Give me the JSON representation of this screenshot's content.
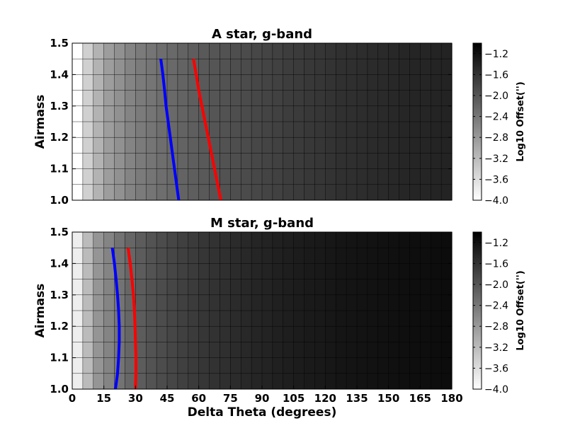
{
  "chart_data": [
    {
      "type": "heatmap",
      "title": "A star, g-band",
      "xlabel": "",
      "ylabel": "Airmass",
      "xlim": [
        0,
        180
      ],
      "ylim": [
        1.0,
        1.5
      ],
      "x_grid_step": 5,
      "y_grid_step": 0.05,
      "x_ticks": [],
      "y_ticks": [
        "1.0",
        "1.1",
        "1.2",
        "1.3",
        "1.4",
        "1.5"
      ],
      "heat_levels": [
        -4.0,
        -3.45,
        -3.1,
        -2.85,
        -2.7,
        -2.55,
        -2.45,
        -2.38,
        -2.3,
        -2.23,
        -2.17,
        -2.11,
        -2.05,
        -2.0,
        -1.96,
        -1.92,
        -1.88,
        -1.84,
        -1.8,
        -1.76,
        -1.72,
        -1.69,
        -1.66,
        -1.63,
        -1.6,
        -1.57,
        -1.55,
        -1.53,
        -1.51,
        -1.49,
        -1.47,
        -1.45,
        -1.44,
        -1.43,
        -1.42,
        -1.41
      ],
      "colormap": {
        "min": -4.0,
        "max": -1.0,
        "low_color": "#ffffff",
        "high_color": "#000000"
      },
      "colorbar": {
        "label": "Log10 Offset('')",
        "ticks": [
          "-4.0",
          "-3.6",
          "-3.2",
          "-2.8",
          "-2.4",
          "-2.0",
          "-1.6",
          "-1.2"
        ],
        "tick_values": [
          -4.0,
          -3.6,
          -3.2,
          -2.8,
          -2.4,
          -2.0,
          -1.6,
          -1.2
        ]
      },
      "series": [
        {
          "color": "#0000ff",
          "points": [
            [
              50.5,
              1.0
            ],
            [
              49.5,
              1.05
            ],
            [
              48.5,
              1.1
            ],
            [
              47.5,
              1.15
            ],
            [
              46.5,
              1.2
            ],
            [
              45.5,
              1.25
            ],
            [
              44.5,
              1.3
            ],
            [
              43.8,
              1.35
            ],
            [
              43.0,
              1.4
            ],
            [
              42.0,
              1.45
            ]
          ]
        },
        {
          "color": "#ff0000",
          "points": [
            [
              70.5,
              1.0
            ],
            [
              69.0,
              1.05
            ],
            [
              67.5,
              1.1
            ],
            [
              66.0,
              1.15
            ],
            [
              64.5,
              1.2
            ],
            [
              63.0,
              1.25
            ],
            [
              61.5,
              1.3
            ],
            [
              60.0,
              1.35
            ],
            [
              58.8,
              1.4
            ],
            [
              57.5,
              1.45
            ]
          ]
        }
      ]
    },
    {
      "type": "heatmap",
      "title": "M star, g-band",
      "xlabel": "Delta Theta (degrees)",
      "ylabel": "Airmass",
      "xlim": [
        0,
        180
      ],
      "ylim": [
        1.0,
        1.5
      ],
      "x_grid_step": 5,
      "y_grid_step": 0.05,
      "x_ticks": [
        "0",
        "15",
        "30",
        "45",
        "60",
        "75",
        "90",
        "105",
        "120",
        "135",
        "150",
        "165",
        "180"
      ],
      "y_ticks": [
        "1.0",
        "1.1",
        "1.2",
        "1.3",
        "1.4",
        "1.5"
      ],
      "heat_levels": [
        -3.8,
        -3.2,
        -2.75,
        -2.55,
        -2.35,
        -2.2,
        -2.08,
        -1.98,
        -1.9,
        -1.82,
        -1.75,
        -1.69,
        -1.64,
        -1.59,
        -1.55,
        -1.51,
        -1.47,
        -1.44,
        -1.41,
        -1.38,
        -1.35,
        -1.33,
        -1.31,
        -1.29,
        -1.27,
        -1.25,
        -1.23,
        -1.22,
        -1.21,
        -1.2,
        -1.19,
        -1.18,
        -1.17,
        -1.16,
        -1.15,
        -1.14
      ],
      "colormap": {
        "min": -4.0,
        "max": -1.0,
        "low_color": "#ffffff",
        "high_color": "#000000"
      },
      "colorbar": {
        "label": "Log10 Offset('')",
        "ticks": [
          "-4.0",
          "-3.6",
          "-3.2",
          "-2.8",
          "-2.4",
          "-2.0",
          "-1.6",
          "-1.2"
        ],
        "tick_values": [
          -4.0,
          -3.6,
          -3.2,
          -2.8,
          -2.4,
          -2.0,
          -1.6,
          -1.2
        ]
      },
      "series": [
        {
          "color": "#0000ff",
          "points": [
            [
              20.5,
              1.0
            ],
            [
              21.5,
              1.05
            ],
            [
              22.0,
              1.1
            ],
            [
              22.3,
              1.15
            ],
            [
              22.3,
              1.2
            ],
            [
              22.0,
              1.25
            ],
            [
              21.5,
              1.3
            ],
            [
              20.8,
              1.35
            ],
            [
              20.0,
              1.4
            ],
            [
              19.0,
              1.45
            ]
          ]
        },
        {
          "color": "#ff0000",
          "points": [
            [
              30.0,
              1.0
            ],
            [
              30.2,
              1.05
            ],
            [
              30.2,
              1.1
            ],
            [
              30.0,
              1.15
            ],
            [
              29.8,
              1.2
            ],
            [
              29.5,
              1.25
            ],
            [
              29.0,
              1.3
            ],
            [
              28.3,
              1.35
            ],
            [
              27.5,
              1.4
            ],
            [
              26.5,
              1.45
            ]
          ]
        }
      ]
    }
  ]
}
